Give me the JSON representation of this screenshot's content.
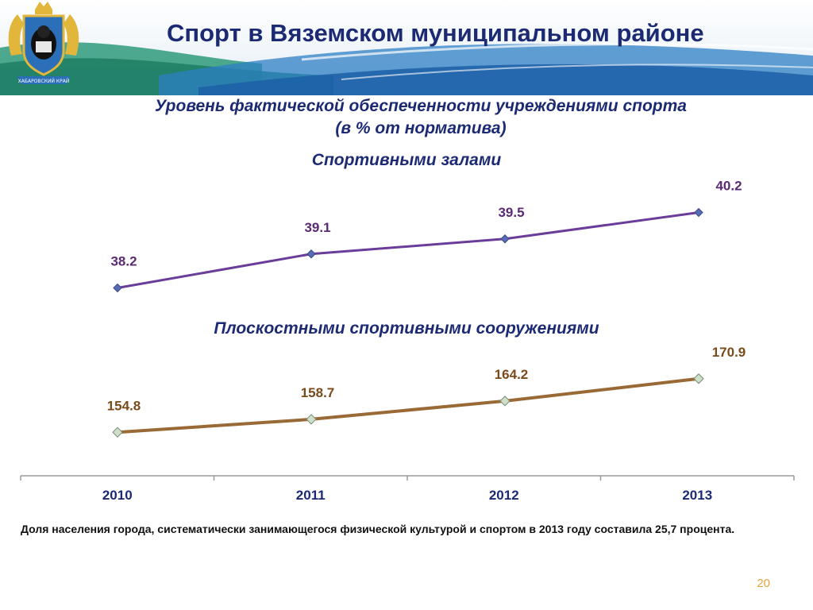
{
  "header": {
    "title": "Спорт в Вяземском муниципальном районе",
    "emblem_text": "ХАБАРОВСКИЙ КРАЙ"
  },
  "subtitle_line1": "Уровень фактической обеспеченности учреждениями спорта",
  "subtitle_line2": "(в % от норматива)",
  "chart_data": {
    "type": "line",
    "categories": [
      "2010",
      "2011",
      "2012",
      "2013"
    ],
    "series": [
      {
        "name": "Спортивными залами",
        "values": [
          38.2,
          39.1,
          39.5,
          40.2
        ],
        "color": "#6a3d9a",
        "marker_color": "#5a6bb5"
      },
      {
        "name": "Плоскостными спортивными сооружениями",
        "values": [
          154.8,
          158.7,
          164.2,
          170.9
        ],
        "color": "#9a6a36",
        "marker_color": "#cfe0c8"
      }
    ],
    "value_labels": {
      "series0": [
        "38.2",
        "39.1",
        "39.5",
        "40.2"
      ],
      "series1": [
        "154.8",
        "158.7",
        "164.2",
        "170.9"
      ]
    },
    "label_color": "#5a2a72",
    "label_color_2": "#7a4a1a",
    "xlabel": "",
    "ylabel": "",
    "grid": false,
    "legend": "none"
  },
  "footnote": "Доля населения города, систематически занимающегося физической культурой и спортом в 2013 году составила 25,7 процента.",
  "page_number": "20"
}
